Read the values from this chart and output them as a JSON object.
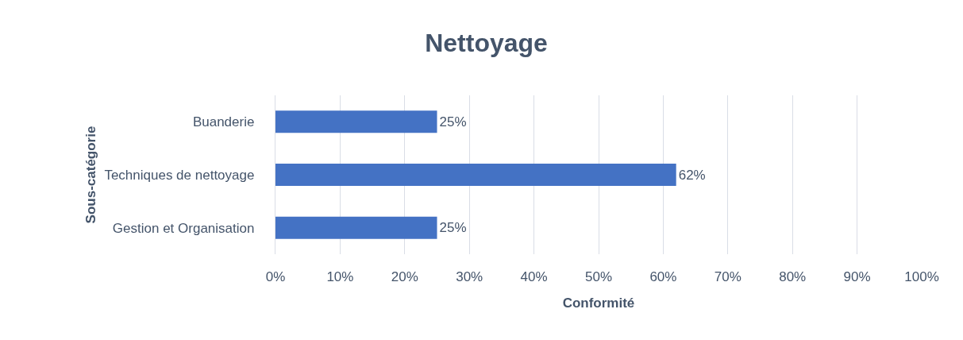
{
  "chart_data": {
    "type": "bar",
    "orientation": "horizontal",
    "title": "Nettoyage",
    "xlabel": "Conformité",
    "ylabel": "Sous-catégorie",
    "categories": [
      "Buanderie",
      "Techniques de nettoyage",
      "Gestion et Organisation"
    ],
    "values": [
      25,
      62,
      25
    ],
    "value_labels": [
      "25%",
      "62%",
      "25%"
    ],
    "color": "#4472c4",
    "xlim": [
      0,
      100
    ],
    "xticks": [
      {
        "value": 0,
        "label": "0%"
      },
      {
        "value": 10,
        "label": "10%"
      },
      {
        "value": 20,
        "label": "20%"
      },
      {
        "value": 30,
        "label": "30%"
      },
      {
        "value": 40,
        "label": "40%"
      },
      {
        "value": 50,
        "label": "50%"
      },
      {
        "value": 60,
        "label": "60%"
      },
      {
        "value": 70,
        "label": "70%"
      },
      {
        "value": 80,
        "label": "80%"
      },
      {
        "value": 90,
        "label": "90%"
      },
      {
        "value": 100,
        "label": "100%"
      }
    ],
    "grid": "x"
  }
}
